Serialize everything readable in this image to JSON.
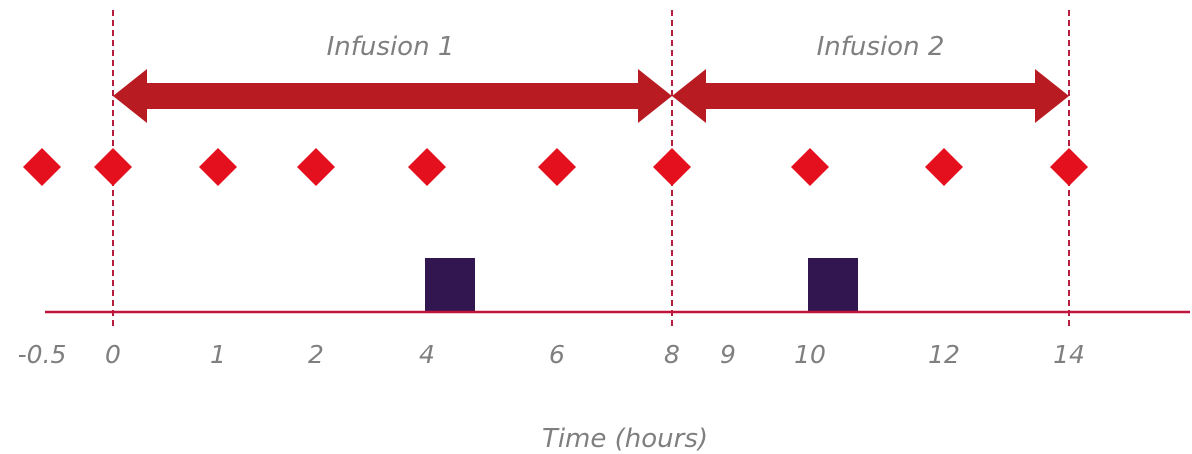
{
  "colors": {
    "axis": "#c0143c",
    "divider": "#b41e3c",
    "arrow": "#b81c22",
    "marker": "#e4101e",
    "box": "#321650",
    "label": "#7f7f7f"
  },
  "infusions": [
    {
      "label": "Infusion 1",
      "start": 0,
      "end": 8
    },
    {
      "label": "Infusion 2",
      "start": 8,
      "end": 14
    }
  ],
  "divider_times": [
    0,
    8,
    14
  ],
  "sample_times": [
    -0.5,
    0,
    1,
    2,
    4,
    6,
    8,
    10,
    12,
    14
  ],
  "event_boxes": [
    {
      "time": 4
    },
    {
      "time": 10
    }
  ],
  "axis": {
    "tick_labels": [
      "-0.5",
      "0",
      "1",
      "2",
      "4",
      "6",
      "8",
      "9",
      "10",
      "12",
      "14"
    ],
    "title": "Time (hours)"
  }
}
